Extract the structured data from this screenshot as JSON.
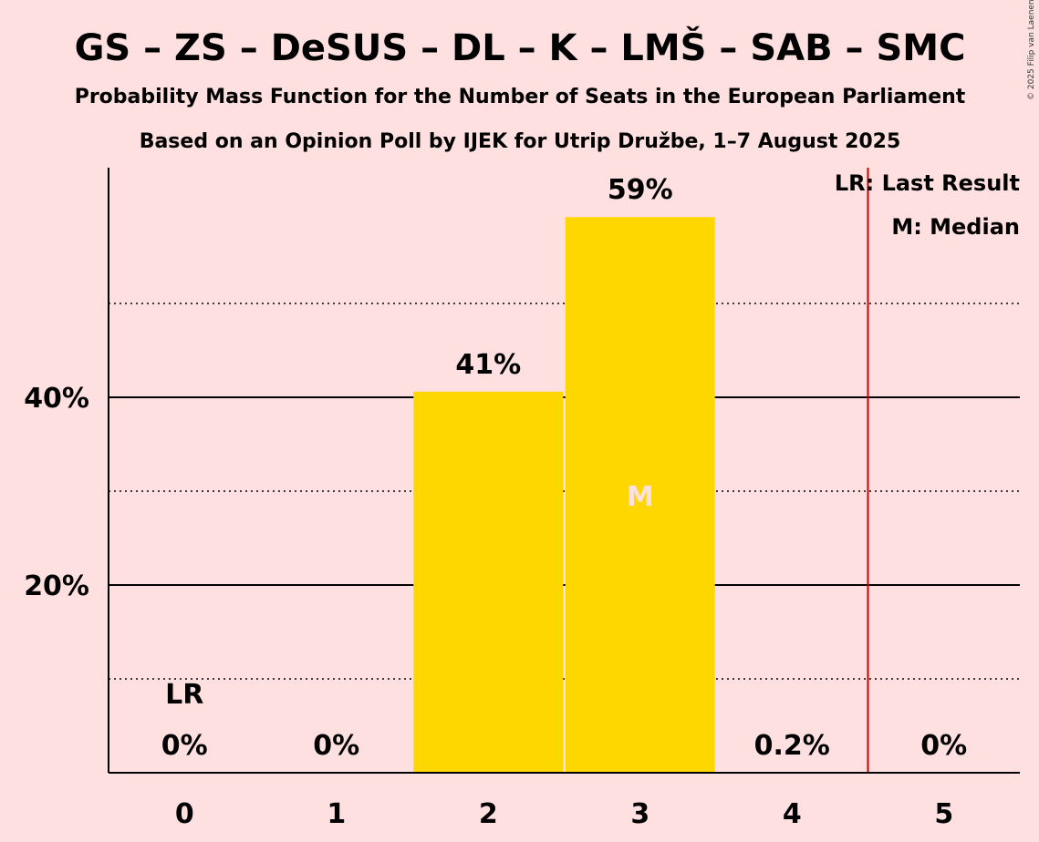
{
  "title": "GS – ZS – DeSUS – DL – K – LMŠ – SAB – SMC",
  "subtitle1": "Probability Mass Function for the Number of Seats in the European Parliament",
  "subtitle2": "Based on an Opinion Poll by IJEK for Utrip Družbe, 1–7 August 2025",
  "copyright": "© 2025 Filip van Laenen",
  "legend": {
    "last_result": "LR: Last Result",
    "median": "M: Median"
  },
  "colors": {
    "background": "#FFE0E0",
    "bar": "#FFD700",
    "last_result_line": "#CC0000",
    "median_text": "#FFE0E0"
  },
  "chart_data": {
    "type": "bar",
    "categories": [
      "0",
      "1",
      "2",
      "3",
      "4",
      "5"
    ],
    "values": [
      0,
      0,
      40.6,
      59.2,
      0.2,
      0
    ],
    "value_labels": [
      "0%",
      "0%",
      "41%",
      "59%",
      "0.2%",
      "0%"
    ],
    "ylim": [
      0,
      60
    ],
    "yticks_major": [
      20,
      40
    ],
    "ytick_labels": [
      "20%",
      "40%"
    ],
    "yticks_minor": [
      10,
      30,
      50
    ],
    "last_result_seats": 0,
    "last_result_marker": "LR",
    "last_result_line_between": [
      4,
      5
    ],
    "median_seats": 3,
    "median_marker": "M",
    "legend_position": "top-right"
  }
}
